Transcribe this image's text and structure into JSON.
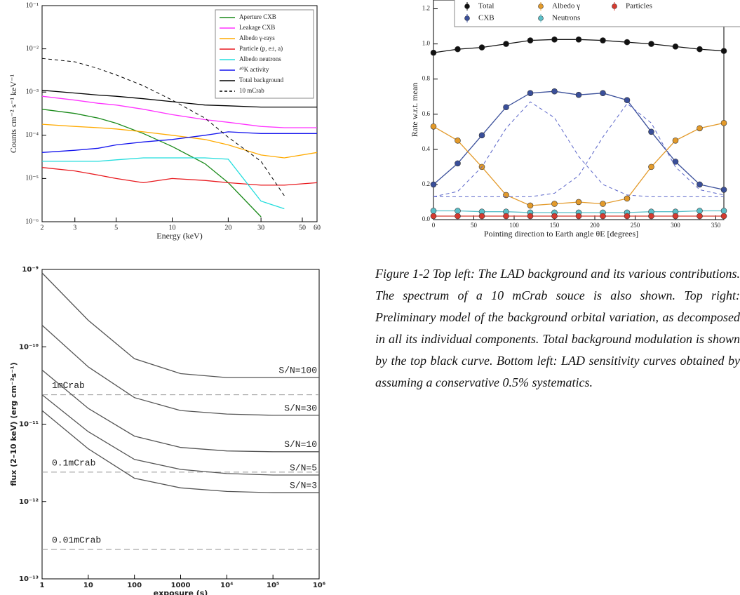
{
  "chart_data": [
    {
      "type": "line",
      "xlabel": "Energy (keV)",
      "ylabel": "Counts cm⁻² s⁻¹ keV⁻¹",
      "xlog": true,
      "ylog": true,
      "xlim": [
        2,
        60
      ],
      "ylim": [
        1e-06,
        0.1
      ],
      "xticks": [
        2,
        3,
        5,
        10,
        20,
        30,
        50,
        60
      ],
      "yticks": [
        {
          "value": 1e-06,
          "label": "10⁻⁶"
        },
        {
          "value": 1e-05,
          "label": "10⁻⁵"
        },
        {
          "value": 0.0001,
          "label": "10⁻⁴"
        },
        {
          "value": 0.001,
          "label": "10⁻³"
        },
        {
          "value": 0.01,
          "label": "10⁻²"
        },
        {
          "value": 0.1,
          "label": "10⁻¹"
        }
      ],
      "legend": "upper right",
      "x": [
        2,
        3,
        4,
        5,
        7,
        10,
        15,
        20,
        30,
        40,
        60
      ],
      "series": [
        {
          "name": "Aperture CXB",
          "color": "#1a8a1a",
          "values": [
            0.0004,
            0.00032,
            0.00025,
            0.00019,
            0.00011,
            5.5e-05,
            2.2e-05,
            8e-06,
            1.3e-06,
            null,
            null
          ]
        },
        {
          "name": "Leakage CXB",
          "color": "#ff33ff",
          "values": [
            0.0008,
            0.00065,
            0.00055,
            0.0005,
            0.0004,
            0.0003,
            0.00023,
            0.0002,
            0.00016,
            0.00015,
            0.00015
          ]
        },
        {
          "name": "Albedo γ-rays",
          "color": "#ffaa00",
          "values": [
            0.00018,
            0.00016,
            0.00015,
            0.00014,
            0.00012,
            0.0001,
            8e-05,
            6e-05,
            3.5e-05,
            3e-05,
            4e-05
          ]
        },
        {
          "name": "Particle (p, e±, a)",
          "color": "#e8191e",
          "values": [
            1.8e-05,
            1.5e-05,
            1.2e-05,
            1e-05,
            8e-06,
            1e-05,
            9e-06,
            8e-06,
            7e-06,
            7e-06,
            8e-06
          ]
        },
        {
          "name": "Albedo neutrons",
          "color": "#22dddd",
          "values": [
            2.5e-05,
            2.5e-05,
            2.5e-05,
            2.7e-05,
            3e-05,
            3e-05,
            3e-05,
            2.8e-05,
            3e-06,
            2e-06,
            null
          ]
        },
        {
          "name": "⁴⁰K activity",
          "color": "#1515ee",
          "values": [
            4e-05,
            4.5e-05,
            5e-05,
            6e-05,
            7e-05,
            8e-05,
            0.0001,
            0.00012,
            0.00011,
            0.00011,
            0.00011
          ]
        },
        {
          "name": "Total background",
          "color": "#000000",
          "values": [
            0.0011,
            0.00095,
            0.00085,
            0.0008,
            0.0007,
            0.0006,
            0.0005,
            0.00048,
            0.00045,
            0.00045,
            0.00045
          ]
        },
        {
          "name": "10 mCrab",
          "color": "#000000",
          "dashed": true,
          "values": [
            0.006,
            0.005,
            0.0035,
            0.0025,
            0.0014,
            0.00065,
            0.00025,
            9e-05,
            2.5e-05,
            4e-06,
            null
          ]
        }
      ]
    },
    {
      "type": "line",
      "markers": true,
      "xlabel": "Pointing direction to Earth angle θE [degrees]",
      "ylabel": "Rate w.r.t. mean",
      "xlim": [
        0,
        360
      ],
      "ylim": [
        0,
        1.25
      ],
      "xticks": [
        0,
        50,
        100,
        150,
        200,
        250,
        300,
        350
      ],
      "yticks": [
        {
          "value": 0,
          "label": "0.0"
        },
        0.2,
        0.4,
        0.6,
        0.8,
        {
          "value": 1,
          "label": "1.0"
        },
        1.2
      ],
      "legend": "upper center",
      "x": [
        0,
        30,
        60,
        90,
        120,
        150,
        180,
        210,
        240,
        270,
        300,
        330,
        360
      ],
      "series": [
        {
          "name": "Total",
          "color": "#111111",
          "values": [
            0.95,
            0.97,
            0.98,
            1.0,
            1.02,
            1.025,
            1.025,
            1.02,
            1.01,
            1.0,
            0.985,
            0.97,
            0.96
          ]
        },
        {
          "name": "CXB",
          "color": "#3a4f9a",
          "values": [
            0.2,
            0.32,
            0.48,
            0.64,
            0.72,
            0.73,
            0.71,
            0.72,
            0.68,
            0.5,
            0.33,
            0.2,
            0.17
          ]
        },
        {
          "name": "Albedo γ",
          "color": "#e39a2a",
          "values": [
            0.53,
            0.45,
            0.3,
            0.14,
            0.08,
            0.09,
            0.1,
            0.09,
            0.12,
            0.3,
            0.45,
            0.52,
            0.55
          ]
        },
        {
          "name": "Neutrons",
          "color": "#5bbfc8",
          "values": [
            0.05,
            0.05,
            0.045,
            0.045,
            0.04,
            0.04,
            0.04,
            0.04,
            0.04,
            0.045,
            0.045,
            0.05,
            0.05
          ]
        },
        {
          "name": "Particles",
          "color": "#d63a2f",
          "values": [
            0.02,
            0.02,
            0.02,
            0.02,
            0.02,
            0.02,
            0.02,
            0.02,
            0.02,
            0.02,
            0.02,
            0.02,
            0.02
          ]
        },
        {
          "color": "#5b66c9",
          "dashed": true,
          "values": [
            0.13,
            0.16,
            0.3,
            0.52,
            0.67,
            0.58,
            0.36,
            0.2,
            0.14,
            0.13,
            0.13,
            0.13,
            0.13
          ]
        },
        {
          "color": "#5b66c9",
          "dashed": true,
          "values": [
            0.13,
            0.13,
            0.13,
            0.13,
            0.13,
            0.15,
            0.25,
            0.47,
            0.66,
            0.55,
            0.3,
            0.17,
            0.14
          ]
        }
      ]
    },
    {
      "type": "line",
      "xlabel": "exposure (s)",
      "ylabel": "flux (2–10 keV) (erg cm⁻²s⁻¹)",
      "xlog": true,
      "ylog": true,
      "xlim": [
        1,
        1000000
      ],
      "ylim": [
        1e-13,
        1e-09
      ],
      "xticks": [
        1,
        10,
        100,
        1000,
        {
          "value": 10000,
          "label": "10⁴"
        },
        {
          "value": 100000,
          "label": "10⁵"
        },
        {
          "value": 1000000,
          "label": "10⁶"
        }
      ],
      "yticks": [
        {
          "value": 1e-13,
          "label": "10⁻¹³"
        },
        {
          "value": 1e-12,
          "label": "10⁻¹²"
        },
        {
          "value": 1e-11,
          "label": "10⁻¹¹"
        },
        {
          "value": 1e-10,
          "label": "10⁻¹⁰"
        },
        {
          "value": 1e-09,
          "label": "10⁻⁹"
        }
      ],
      "legend": "inline",
      "x": [
        1,
        10,
        100,
        1000,
        10000,
        100000,
        1000000
      ],
      "series": [
        {
          "name": "S/N=100",
          "color": "#555555",
          "values": [
            9e-10,
            2.2e-10,
            7e-11,
            4.5e-11,
            4e-11,
            4e-11,
            4e-11
          ]
        },
        {
          "name": "S/N=30",
          "color": "#555555",
          "values": [
            1.9e-10,
            5.5e-11,
            2.2e-11,
            1.5e-11,
            1.35e-11,
            1.3e-11,
            1.3e-11
          ]
        },
        {
          "name": "S/N=10",
          "color": "#555555",
          "values": [
            5e-11,
            1.6e-11,
            7e-12,
            5e-12,
            4.5e-12,
            4.4e-12,
            4.4e-12
          ]
        },
        {
          "name": "S/N=5",
          "color": "#555555",
          "values": [
            2.4e-11,
            8e-12,
            3.5e-12,
            2.6e-12,
            2.3e-12,
            2.2e-12,
            2.2e-12
          ]
        },
        {
          "name": "S/N=3",
          "color": "#555555",
          "values": [
            1.5e-11,
            4.8e-12,
            2e-12,
            1.5e-12,
            1.35e-12,
            1.3e-12,
            1.3e-12
          ]
        }
      ],
      "hlines": [
        {
          "label": "1mCrab",
          "value": 2.4e-11
        },
        {
          "label": "0.1mCrab",
          "value": 2.4e-12
        },
        {
          "label": "0.01mCrab",
          "value": 2.4e-13
        }
      ]
    }
  ],
  "caption": "Figure 1-2 Top left:  The LAD background and its various contributions. The spectrum of a 10 mCrab souce is also shown. Top right: Preliminary model of the background orbital variation, as decomposed in all its individual components. Total background modulation is shown by the top black curve. Bottom left: LAD sensitivity curves obtained by assuming a conservative 0.5% systematics."
}
